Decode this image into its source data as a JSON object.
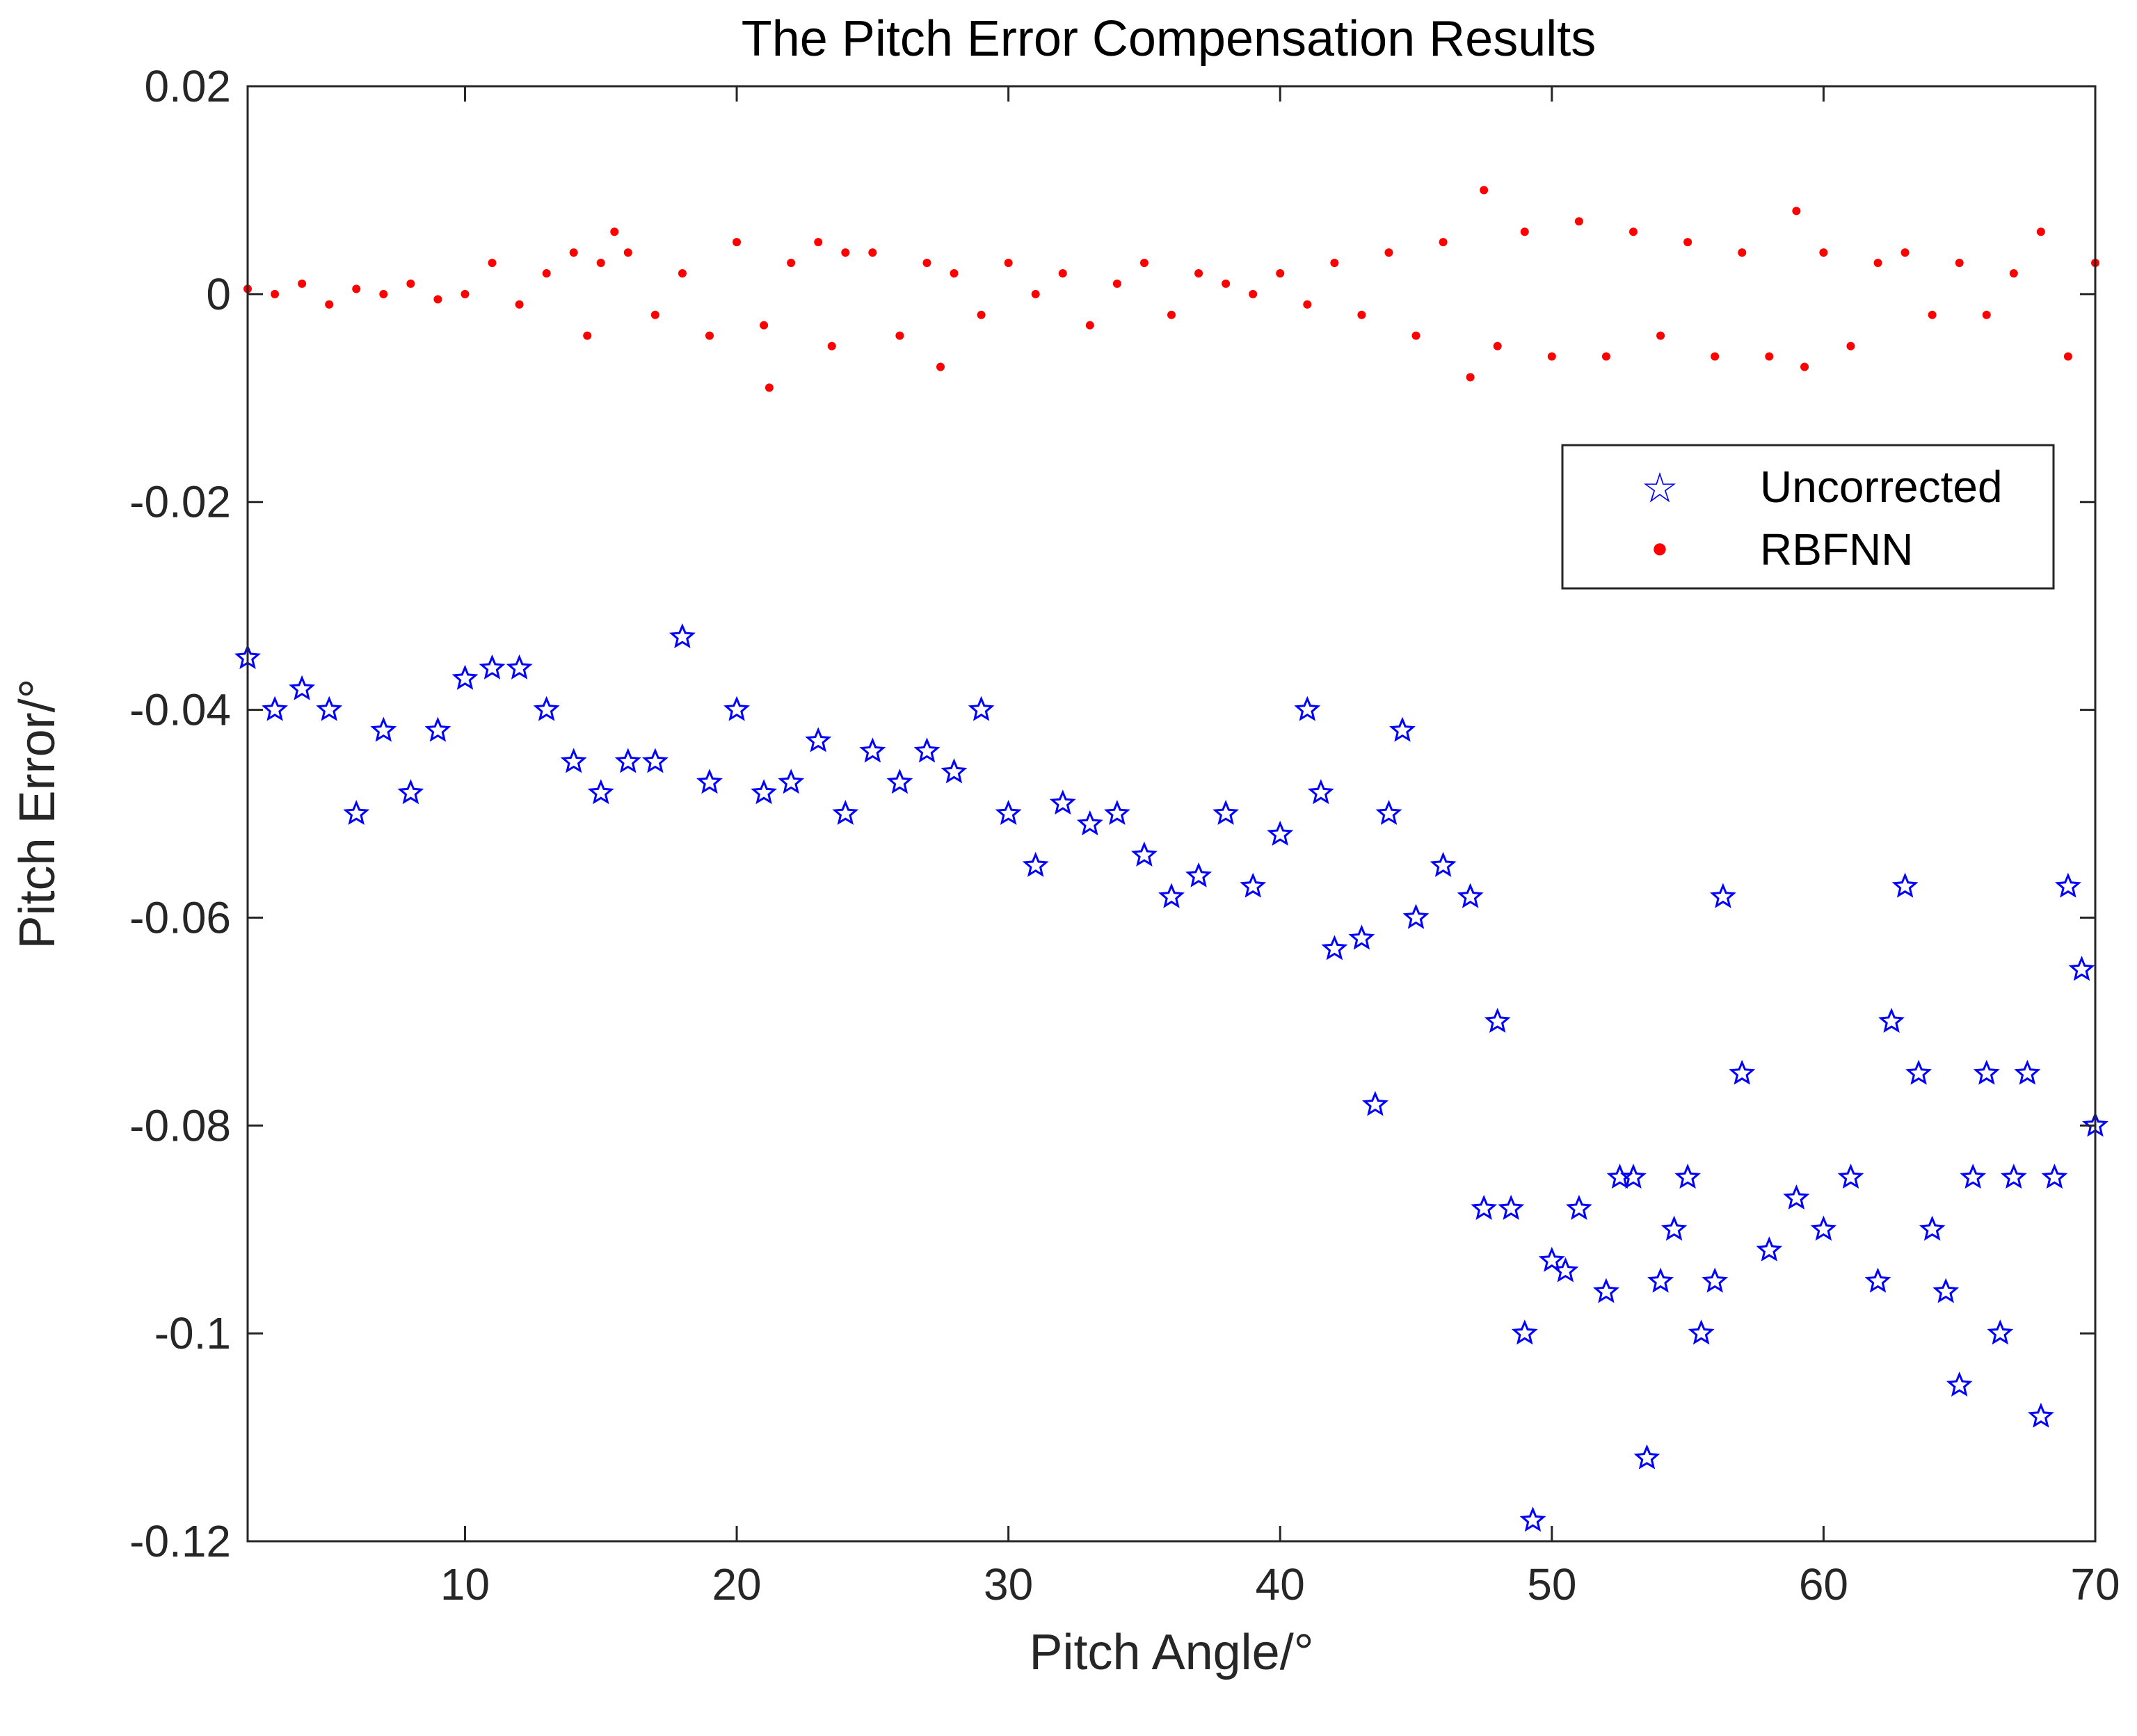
{
  "chart_data": {
    "type": "scatter",
    "title": "The Pitch Error Compensation Results",
    "xlabel": "Pitch Angle/°",
    "ylabel": "Pitch Error/°",
    "xlim": [
      2,
      70
    ],
    "ylim": [
      -0.12,
      0.02
    ],
    "xticks": [
      10,
      20,
      30,
      40,
      50,
      60,
      70
    ],
    "xtick_labels": [
      "10",
      "20",
      "30",
      "40",
      "50",
      "60",
      "70"
    ],
    "yticks": [
      0.02,
      0,
      -0.02,
      -0.04,
      -0.06,
      -0.08,
      -0.1,
      -0.12
    ],
    "ytick_labels": [
      "0.02",
      "0",
      "-0.02",
      "-0.04",
      "-0.06",
      "-0.08",
      "-0.1",
      "-0.12"
    ],
    "grid": false,
    "legend_position": "top-right",
    "series": [
      {
        "name": "Uncorrected",
        "marker": "star",
        "color": "#0000ff",
        "x": [
          2,
          3,
          4,
          5,
          6,
          7,
          8,
          9,
          10,
          11,
          12,
          13,
          14,
          15,
          16,
          17,
          18,
          19,
          20,
          21,
          22,
          23,
          24,
          25,
          26,
          27,
          28,
          29,
          30,
          31,
          32,
          33,
          34,
          35,
          36,
          37,
          38,
          39,
          40,
          41,
          41.5,
          42,
          43,
          43.5,
          44,
          44.5,
          45,
          46,
          47,
          47.5,
          48,
          48.5,
          49,
          49.3,
          50,
          50.5,
          51,
          52,
          52.5,
          53,
          53.5,
          54,
          54.5,
          55,
          55.5,
          56,
          56.3,
          57,
          58,
          59,
          60,
          61,
          62,
          62.5,
          63,
          63.5,
          64,
          64.5,
          65,
          65.5,
          66,
          66.5,
          67,
          67.5,
          68,
          68.5,
          69,
          69.5,
          70
        ],
        "y": [
          -0.035,
          -0.04,
          -0.038,
          -0.04,
          -0.05,
          -0.042,
          -0.048,
          -0.042,
          -0.037,
          -0.036,
          -0.036,
          -0.04,
          -0.045,
          -0.048,
          -0.045,
          -0.045,
          -0.033,
          -0.047,
          -0.04,
          -0.048,
          -0.047,
          -0.043,
          -0.05,
          -0.044,
          -0.047,
          -0.044,
          -0.046,
          -0.04,
          -0.05,
          -0.055,
          -0.049,
          -0.051,
          -0.05,
          -0.054,
          -0.058,
          -0.056,
          -0.05,
          -0.057,
          -0.052,
          -0.04,
          -0.048,
          -0.063,
          -0.062,
          -0.078,
          -0.05,
          -0.042,
          -0.06,
          -0.055,
          -0.058,
          -0.088,
          -0.07,
          -0.088,
          -0.1,
          -0.118,
          -0.093,
          -0.094,
          -0.088,
          -0.096,
          -0.085,
          -0.085,
          -0.112,
          -0.095,
          -0.09,
          -0.085,
          -0.1,
          -0.095,
          -0.058,
          -0.075,
          -0.092,
          -0.087,
          -0.09,
          -0.085,
          -0.095,
          -0.07,
          -0.057,
          -0.075,
          -0.09,
          -0.096,
          -0.105,
          -0.085,
          -0.075,
          -0.1,
          -0.085,
          -0.075,
          -0.108,
          -0.085,
          -0.057,
          -0.065,
          -0.08
        ]
      },
      {
        "name": "RBFNN",
        "marker": "point",
        "color": "#ff0000",
        "x": [
          2,
          3,
          4,
          5,
          6,
          7,
          8,
          9,
          10,
          11,
          12,
          13,
          14,
          14.5,
          15,
          15.5,
          16,
          17,
          18,
          19,
          20,
          21,
          21.2,
          22,
          23,
          23.5,
          24,
          25,
          26,
          27,
          27.5,
          28,
          29,
          30,
          31,
          32,
          33,
          34,
          35,
          36,
          37,
          38,
          39,
          40,
          41,
          42,
          43,
          44,
          45,
          46,
          47,
          47.5,
          48,
          49,
          50,
          51,
          52,
          53,
          54,
          55,
          56,
          57,
          58,
          59,
          59.3,
          60,
          61,
          62,
          63,
          64,
          65,
          66,
          67,
          68,
          69,
          70
        ],
        "y": [
          0.0005,
          0.0,
          0.001,
          -0.001,
          0.0005,
          0.0,
          0.001,
          -0.0005,
          0.0,
          0.003,
          -0.001,
          0.002,
          0.004,
          -0.004,
          0.003,
          0.006,
          0.004,
          -0.002,
          0.002,
          -0.004,
          0.005,
          -0.003,
          -0.009,
          0.003,
          0.005,
          -0.005,
          0.004,
          0.004,
          -0.004,
          0.003,
          -0.007,
          0.002,
          -0.002,
          0.003,
          0.0,
          0.002,
          -0.003,
          0.001,
          0.003,
          -0.002,
          0.002,
          0.001,
          0.0,
          0.002,
          -0.001,
          0.003,
          -0.002,
          0.004,
          -0.004,
          0.005,
          -0.008,
          0.01,
          -0.005,
          0.006,
          -0.006,
          0.007,
          -0.006,
          0.006,
          -0.004,
          0.005,
          -0.006,
          0.004,
          -0.006,
          0.008,
          -0.007,
          0.004,
          -0.005,
          0.003,
          0.004,
          -0.002,
          0.003,
          -0.002,
          0.002,
          0.006,
          -0.006,
          0.003
        ]
      }
    ]
  },
  "legend": {
    "items": [
      {
        "label": "Uncorrected",
        "symbol": "☆",
        "color": "#0000ff"
      },
      {
        "label": "RBFNN",
        "symbol": "•",
        "color": "#ff0000"
      }
    ]
  }
}
